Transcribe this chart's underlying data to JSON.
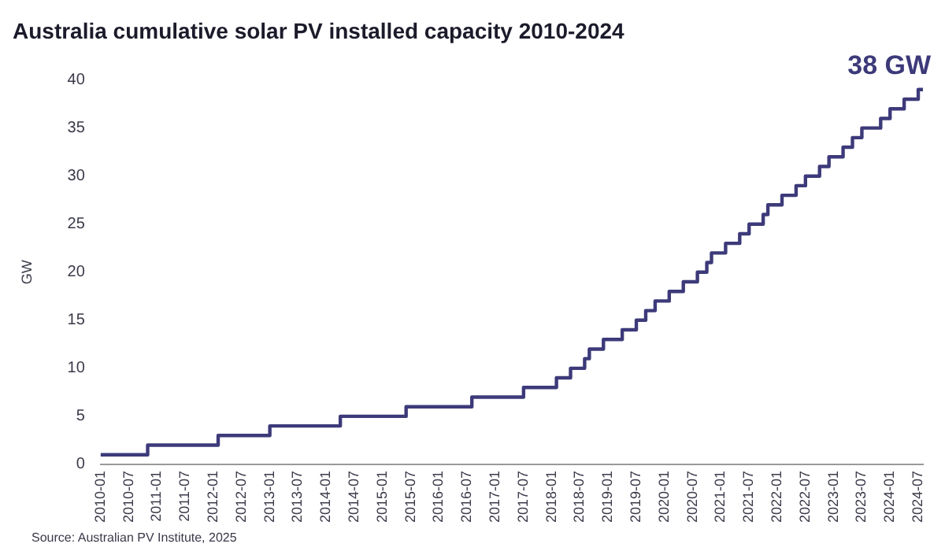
{
  "chart_data": {
    "type": "step",
    "title": "Australia cumulative solar PV installed capacity 2010-2024",
    "ylabel": "GW",
    "x": [
      "2010-01",
      "2010-11",
      "2012-02",
      "2013-01",
      "2014-04",
      "2015-06",
      "2016-08",
      "2017-07",
      "2018-02",
      "2018-05",
      "2018-08",
      "2018-09",
      "2018-12",
      "2019-04",
      "2019-07",
      "2019-09",
      "2019-11",
      "2020-02",
      "2020-05",
      "2020-08",
      "2020-10",
      "2020-11",
      "2021-02",
      "2021-05",
      "2021-07",
      "2021-10",
      "2021-11",
      "2022-02",
      "2022-05",
      "2022-07",
      "2022-10",
      "2022-12",
      "2023-03",
      "2023-05",
      "2023-07",
      "2023-11",
      "2024-01",
      "2024-04",
      "2024-07",
      "2024-08"
    ],
    "series": [
      {
        "color": "#3d3a7a",
        "values": [
          1,
          2,
          3,
          4,
          5,
          6,
          7,
          8,
          9,
          10,
          11,
          12,
          13,
          14,
          15,
          16,
          17,
          18,
          19,
          20,
          21,
          22,
          23,
          24,
          25,
          26,
          27,
          28,
          29,
          30,
          31,
          32,
          33,
          34,
          35,
          36,
          37,
          38,
          39,
          39
        ]
      }
    ],
    "xlim": [
      "2010-01",
      "2024-08"
    ],
    "xticks": [
      "2010-01",
      "2010-07",
      "2011-01",
      "2011-07",
      "2012-01",
      "2012-07",
      "2013-01",
      "2013-07",
      "2014-01",
      "2014-07",
      "2015-01",
      "2015-07",
      "2016-01",
      "2016-07",
      "2017-01",
      "2017-07",
      "2018-01",
      "2018-07",
      "2019-01",
      "2019-07",
      "2020-01",
      "2020-07",
      "2021-01",
      "2021-07",
      "2022-01",
      "2022-07",
      "2023-01",
      "2023-07",
      "2024-01",
      "2024-07"
    ],
    "ylim": [
      0,
      40
    ],
    "yticks": [
      0,
      5,
      10,
      15,
      20,
      25,
      30,
      35,
      40
    ],
    "grid": false,
    "legend": false,
    "marker": "none",
    "line_style": "solid",
    "annotations": [
      {
        "text": "38 GW",
        "x": "2024-07",
        "y": 39
      },
      "Source: Australian PV Institute, 2025"
    ]
  }
}
